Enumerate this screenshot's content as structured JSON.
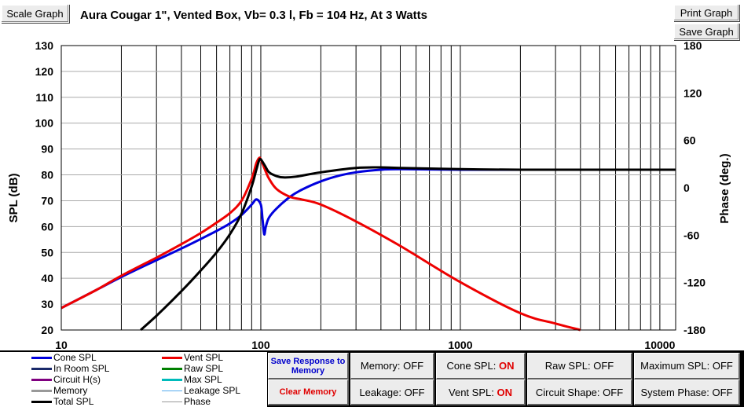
{
  "toolbar": {
    "scale_graph": "Scale Graph",
    "print_graph": "Print Graph",
    "save_graph": "Save Graph"
  },
  "graph_title": "Aura Cougar 1\",  Vented Box, Vb= 0.3 l,  Fb = 104 Hz,  At 3 Watts",
  "chart_data": {
    "type": "line",
    "title": "Aura Cougar 1\",  Vented Box, Vb= 0.3 l,  Fb = 104 Hz,  At 3 Watts",
    "xlabel": "",
    "ylabel": "SPL (dB)",
    "y2label": "Phase (deg.)",
    "xscale": "log",
    "xlim": [
      10,
      12000
    ],
    "ylim": [
      20,
      130
    ],
    "y2lim": [
      -180,
      180
    ],
    "grid": true,
    "x_tick_labels": [
      "10",
      "100",
      "1000",
      "10000"
    ],
    "x_tick_values": [
      10,
      100,
      1000,
      10000
    ],
    "y_ticks": [
      20,
      30,
      40,
      50,
      60,
      70,
      80,
      90,
      100,
      110,
      120,
      130
    ],
    "y2_ticks": [
      -180,
      -120,
      -60,
      0,
      60,
      120,
      180
    ],
    "series": [
      {
        "name": "Cone SPL",
        "color": "#0000dd",
        "x": [
          10,
          15,
          20,
          30,
          40,
          50,
          60,
          70,
          80,
          90,
          95,
          100,
          102,
          104,
          106,
          110,
          120,
          140,
          160,
          200,
          250,
          300,
          400,
          500,
          1000,
          2000,
          5000,
          12000
        ],
        "y": [
          28.5,
          35.5,
          40.5,
          47,
          51.5,
          55.2,
          58.3,
          61.2,
          64.5,
          68.5,
          70.5,
          68.5,
          63,
          57,
          60,
          63.5,
          67,
          71.5,
          74.2,
          77.5,
          79.8,
          81,
          82,
          82.2,
          82,
          82,
          82,
          82
        ]
      },
      {
        "name": "Vent SPL",
        "color": "#ee0000",
        "x": [
          10,
          15,
          20,
          30,
          40,
          50,
          60,
          70,
          80,
          90,
          95,
          98,
          100,
          105,
          110,
          120,
          140,
          160,
          200,
          300,
          500,
          1000,
          2000,
          3000,
          4000
        ],
        "y": [
          28.5,
          35.5,
          41,
          48,
          53.2,
          57.5,
          61.5,
          65.2,
          70,
          78.5,
          84.5,
          86.5,
          86,
          82,
          78.5,
          74.5,
          71.5,
          70.5,
          68.5,
          62,
          52.5,
          38.5,
          26.5,
          22.5,
          20
        ]
      },
      {
        "name": "Total SPL",
        "color": "#000000",
        "x": [
          25,
          30,
          40,
          50,
          60,
          70,
          80,
          90,
          95,
          98,
          100,
          105,
          110,
          120,
          130,
          150,
          200,
          300,
          400,
          500,
          1000,
          2000,
          5000,
          12000
        ],
        "y": [
          20,
          25.5,
          35,
          43,
          50,
          57,
          65,
          75.5,
          82,
          85.5,
          86,
          83.5,
          81,
          79.5,
          79,
          79.3,
          81,
          82.7,
          82.9,
          82.7,
          82.2,
          82,
          82,
          82
        ]
      }
    ]
  },
  "legend": [
    {
      "label": "Cone SPL",
      "color": "#0000dd"
    },
    {
      "label": "Vent SPL",
      "color": "#ee0000"
    },
    {
      "label": "In Room SPL",
      "color": "#1a2a6a"
    },
    {
      "label": "Raw SPL",
      "color": "#008000"
    },
    {
      "label": "Circuit H(s)",
      "color": "#800080"
    },
    {
      "label": "Max SPL",
      "color": "#00bbbb"
    },
    {
      "label": "Memory",
      "color": "#999999"
    },
    {
      "label": "Leakage SPL",
      "color": "#55aaee"
    },
    {
      "label": "Total SPL",
      "color": "#000000"
    },
    {
      "label": "Phase",
      "color": "#999999"
    }
  ],
  "controls": {
    "save_response": "Save Response to Memory",
    "clear_memory": "Clear Memory",
    "memory_label": "Memory:",
    "memory_value": "OFF",
    "leakage_label": "Leakage:",
    "leakage_value": "OFF",
    "cone_spl_label": "Cone SPL:",
    "cone_spl_value": "ON",
    "vent_spl_label": "Vent SPL:",
    "vent_spl_value": "ON",
    "raw_spl_label": "Raw SPL:",
    "raw_spl_value": "OFF",
    "circuit_shape_label": "Circuit Shape:",
    "circuit_shape_value": "OFF",
    "max_spl_label": "Maximum SPL:",
    "max_spl_value": "OFF",
    "system_phase_label": "System Phase:",
    "system_phase_value": "OFF"
  }
}
